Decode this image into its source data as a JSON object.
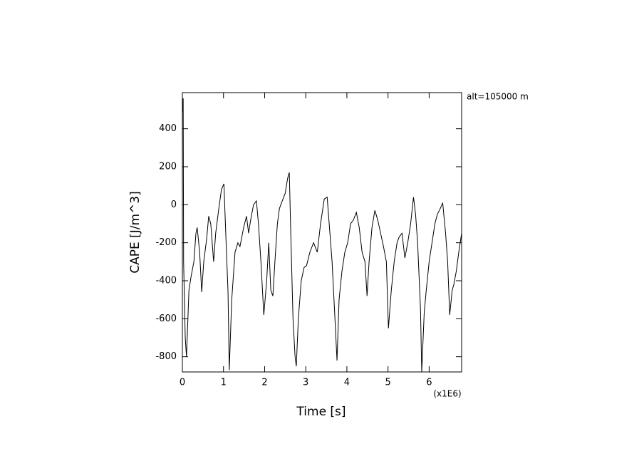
{
  "chart_data": {
    "type": "line",
    "x_label": "Time [s]",
    "y_label": "CAPE [J/m^3]",
    "x_multiplier": "(x1E6)",
    "annotation": "alt=105000 m",
    "xlim": [
      0,
      6.79
    ],
    "ylim": [
      -880,
      590
    ],
    "xticks": [
      0,
      1,
      2,
      3,
      4,
      5,
      6
    ],
    "yticks": [
      -800,
      -600,
      -400,
      -200,
      0,
      200,
      400
    ],
    "series": [
      {
        "color": "#000000",
        "x": [
          0,
          0.02,
          0.03,
          0.07,
          0.1,
          0.16,
          0.21,
          0.28,
          0.33,
          0.36,
          0.42,
          0.47,
          0.52,
          0.59,
          0.64,
          0.69,
          0.76,
          0.81,
          0.88,
          0.95,
          1.01,
          1.06,
          1.11,
          1.14,
          1.2,
          1.28,
          1.35,
          1.4,
          1.49,
          1.56,
          1.61,
          1.66,
          1.73,
          1.8,
          1.85,
          1.91,
          1.98,
          2.05,
          2.1,
          2.15,
          2.2,
          2.25,
          2.31,
          2.36,
          2.41,
          2.5,
          2.56,
          2.6,
          2.63,
          2.69,
          2.74,
          2.77,
          2.82,
          2.89,
          2.96,
          3.02,
          3.1,
          3.19,
          3.28,
          3.36,
          3.45,
          3.52,
          3.57,
          3.64,
          3.71,
          3.76,
          3.81,
          3.88,
          3.95,
          4.02,
          4.09,
          4.16,
          4.23,
          4.3,
          4.37,
          4.44,
          4.49,
          4.54,
          4.61,
          4.68,
          4.75,
          4.82,
          4.89,
          4.96,
          5.01,
          5.08,
          5.15,
          5.22,
          5.27,
          5.34,
          5.41,
          5.48,
          5.55,
          5.62,
          5.67,
          5.72,
          5.79,
          5.82,
          5.88,
          5.93,
          6.0,
          6.07,
          6.14,
          6.2,
          6.27,
          6.33,
          6.4,
          6.45,
          6.5,
          6.56,
          6.6,
          6.66,
          6.72,
          6.79
        ],
        "values": [
          480,
          560,
          -300,
          -700,
          -800,
          -450,
          -380,
          -300,
          -150,
          -120,
          -250,
          -460,
          -300,
          -180,
          -60,
          -100,
          -300,
          -150,
          -30,
          80,
          110,
          -180,
          -460,
          -870,
          -500,
          -250,
          -200,
          -220,
          -120,
          -60,
          -150,
          -80,
          0,
          20,
          -100,
          -300,
          -580,
          -400,
          -200,
          -450,
          -480,
          -300,
          -100,
          -20,
          10,
          60,
          140,
          170,
          -100,
          -600,
          -800,
          -850,
          -600,
          -400,
          -330,
          -320,
          -250,
          -200,
          -250,
          -100,
          30,
          40,
          -100,
          -300,
          -600,
          -820,
          -500,
          -350,
          -250,
          -200,
          -100,
          -80,
          -40,
          -120,
          -250,
          -300,
          -480,
          -300,
          -120,
          -30,
          -80,
          -150,
          -220,
          -300,
          -650,
          -450,
          -300,
          -200,
          -170,
          -150,
          -280,
          -200,
          -100,
          40,
          -50,
          -200,
          -550,
          -880,
          -570,
          -450,
          -300,
          -200,
          -100,
          -50,
          -20,
          10,
          -150,
          -300,
          -580,
          -450,
          -420,
          -350,
          -250,
          -150
        ]
      }
    ]
  }
}
